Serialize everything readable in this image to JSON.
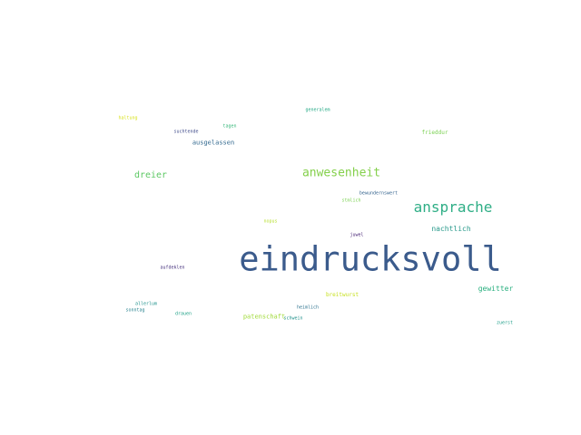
{
  "words": [
    {
      "text": "eindrucksvoll",
      "color": "#3b5b8c"
    },
    {
      "text": "ansprache",
      "color": "#2fae86"
    },
    {
      "text": "anwesenheit",
      "color": "#84d04b"
    },
    {
      "text": "dreier",
      "color": "#5cc863"
    },
    {
      "text": "nachtlich",
      "color": "#2a9a8c"
    },
    {
      "text": "gewitter",
      "color": "#29af7f"
    },
    {
      "text": "ausgelassen",
      "color": "#31688e"
    },
    {
      "text": "patenschaft",
      "color": "#a0da39"
    },
    {
      "text": "breitwurst",
      "color": "#c7e020"
    },
    {
      "text": "frieddur",
      "color": "#7ad151"
    },
    {
      "text": "generalem",
      "color": "#22a884"
    },
    {
      "text": "haltung",
      "color": "#d8e219"
    },
    {
      "text": "suchtende",
      "color": "#3e4a89"
    },
    {
      "text": "tagen",
      "color": "#35b779"
    },
    {
      "text": "bewundernswert",
      "color": "#33628d"
    },
    {
      "text": "stmlich",
      "color": "#7ad151"
    },
    {
      "text": "juwel",
      "color": "#482576"
    },
    {
      "text": "nopus",
      "color": "#b5de2b"
    },
    {
      "text": "aufdeklen",
      "color": "#46327e"
    },
    {
      "text": "allerlum",
      "color": "#20928c"
    },
    {
      "text": "sonntag",
      "color": "#26828e"
    },
    {
      "text": "drauen",
      "color": "#1fa187"
    },
    {
      "text": "heimlich",
      "color": "#2c728e"
    },
    {
      "text": "schwein",
      "color": "#21918c"
    },
    {
      "text": "zuerst",
      "color": "#1f9e89"
    }
  ]
}
